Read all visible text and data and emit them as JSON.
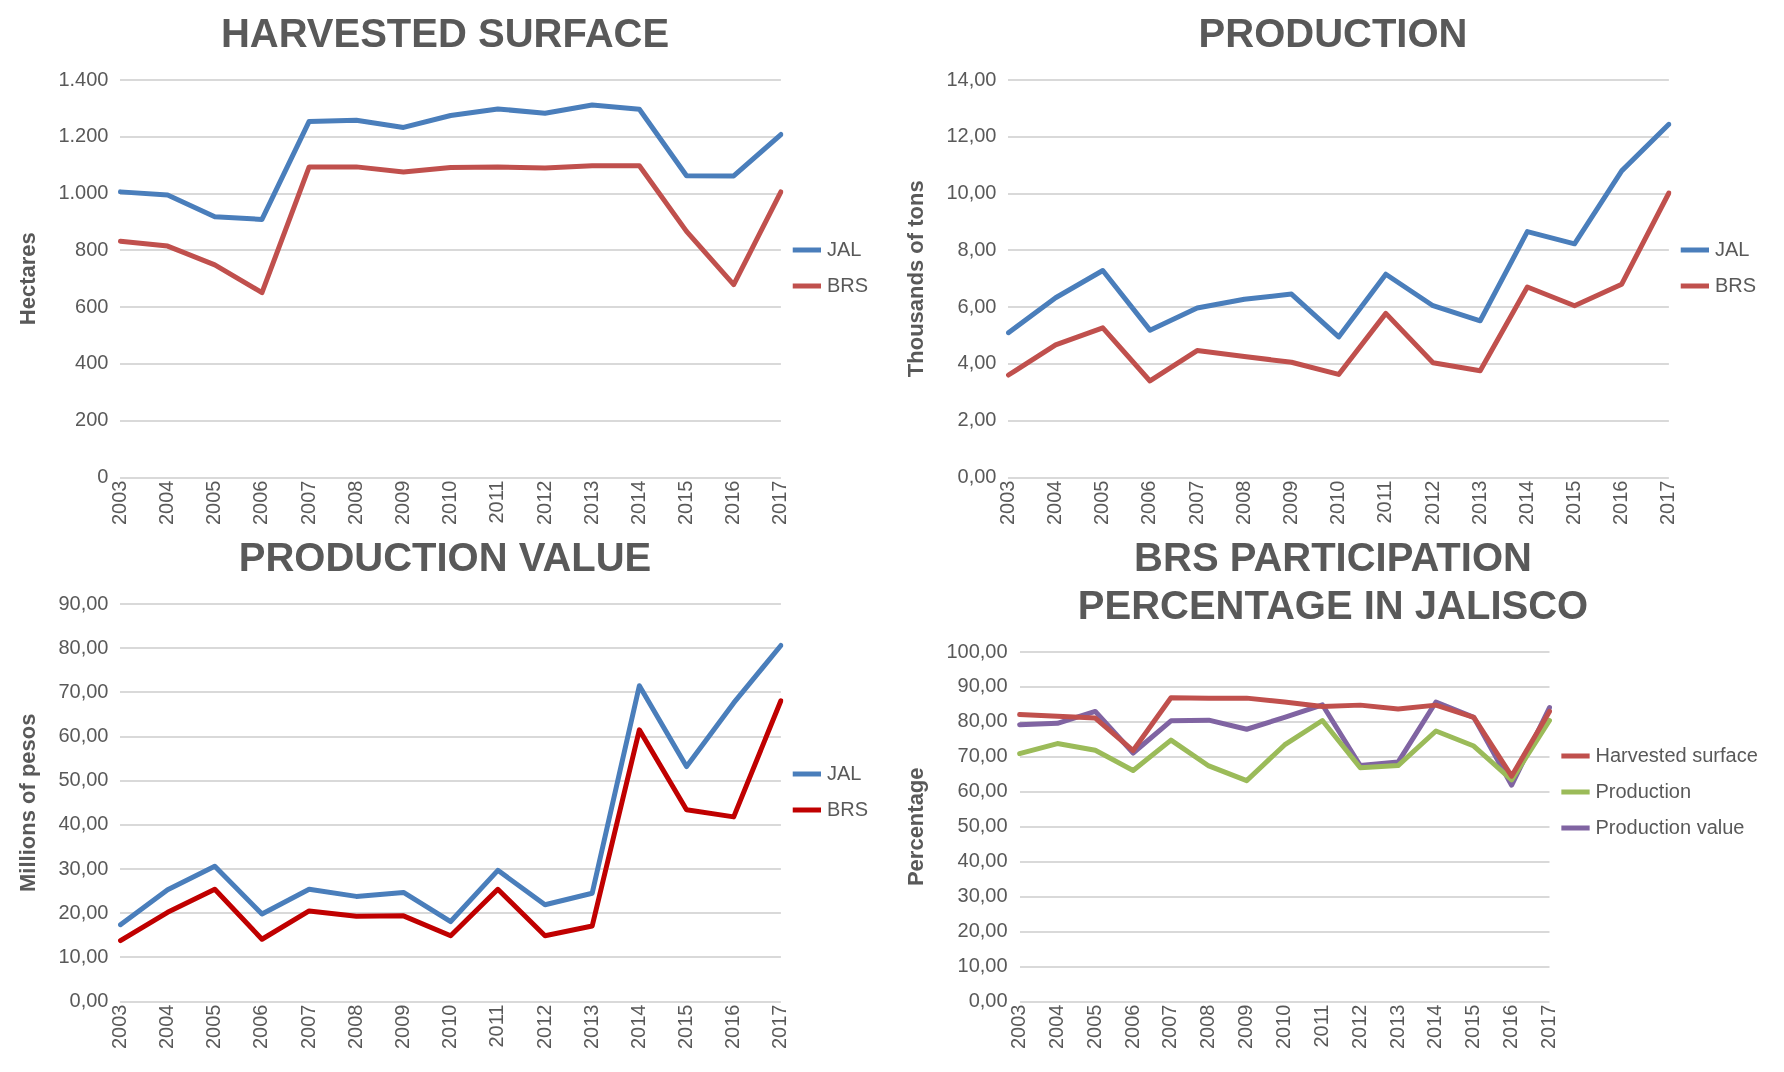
{
  "chart_data": [
    {
      "type": "line",
      "title": "HARVESTED SURFACE",
      "ylabel": "Hectares",
      "categories": [
        "2003",
        "2004",
        "2005",
        "2006",
        "2007",
        "2008",
        "2009",
        "2010",
        "2011",
        "2012",
        "2013",
        "2014",
        "2015",
        "2016",
        "2017"
      ],
      "series": [
        {
          "name": "JAL",
          "color": "#4a7ebb",
          "values": [
            1006,
            995,
            918,
            909,
            1254,
            1258,
            1233,
            1275,
            1298,
            1283,
            1312,
            1297,
            1063,
            1062,
            1208
          ]
        },
        {
          "name": "BRS",
          "color": "#c0504d",
          "values": [
            832,
            815,
            749,
            651,
            1094,
            1094,
            1076,
            1092,
            1094,
            1090,
            1098,
            1098,
            867,
            679,
            1006
          ]
        }
      ],
      "ylim": [
        0,
        1400
      ],
      "yticks": [
        0,
        200,
        400,
        600,
        800,
        {
          "value": 1000,
          "label": "1.000"
        },
        {
          "value": 1200,
          "label": "1.200"
        },
        {
          "value": 1400,
          "label": "1.400"
        }
      ],
      "grid": "y",
      "legend": "right",
      "marker": "none"
    },
    {
      "type": "line",
      "title": "PRODUCTION",
      "ylabel": "Thousands of tons",
      "categories": [
        "2003",
        "2004",
        "2005",
        "2006",
        "2007",
        "2008",
        "2009",
        "2010",
        "2011",
        "2012",
        "2013",
        "2014",
        "2015",
        "2016",
        "2017"
      ],
      "series": [
        {
          "name": "JAL",
          "color": "#4a7ebb",
          "values": [
            5.1,
            6.33,
            7.29,
            5.19,
            5.97,
            6.28,
            6.46,
            4.95,
            7.16,
            6.05,
            5.52,
            8.66,
            8.23,
            10.8,
            12.44
          ]
        },
        {
          "name": "BRS",
          "color": "#c0504d",
          "values": [
            3.61,
            4.67,
            5.27,
            3.4,
            4.47,
            4.26,
            4.06,
            3.63,
            5.78,
            4.04,
            3.76,
            6.71,
            6.05,
            6.81,
            10.02
          ]
        }
      ],
      "ylim": [
        0,
        14
      ],
      "yticks": [
        {
          "value": 0,
          "label": "0,00"
        },
        {
          "value": 2,
          "label": "2,00"
        },
        {
          "value": 4,
          "label": "4,00"
        },
        {
          "value": 6,
          "label": "6,00"
        },
        {
          "value": 8,
          "label": "8,00"
        },
        {
          "value": 10,
          "label": "10,00"
        },
        {
          "value": 12,
          "label": "12,00"
        },
        {
          "value": 14,
          "label": "14,00"
        }
      ],
      "grid": "y",
      "legend": "right",
      "marker": "none"
    },
    {
      "type": "line",
      "title": "PRODUCTION VALUE",
      "ylabel": "Millions of pesos",
      "categories": [
        "2003",
        "2004",
        "2005",
        "2006",
        "2007",
        "2008",
        "2009",
        "2010",
        "2011",
        "2012",
        "2013",
        "2014",
        "2015",
        "2016",
        "2017"
      ],
      "series": [
        {
          "name": "JAL",
          "color": "#4a7ebb",
          "values": [
            17.4,
            25.3,
            30.6,
            19.8,
            25.4,
            23.8,
            24.7,
            18.1,
            29.7,
            21.9,
            24.5,
            71.5,
            53.2,
            67.6,
            80.6
          ]
        },
        {
          "name": "BRS",
          "color": "#c00000",
          "values": [
            13.8,
            20.2,
            25.4,
            14.1,
            20.5,
            19.3,
            19.4,
            14.9,
            25.4,
            14.9,
            17.1,
            61.5,
            43.4,
            41.8,
            68.1
          ]
        }
      ],
      "ylim": [
        0,
        90
      ],
      "yticks": [
        {
          "value": 0,
          "label": "0,00"
        },
        {
          "value": 10,
          "label": "10,00"
        },
        {
          "value": 20,
          "label": "20,00"
        },
        {
          "value": 30,
          "label": "30,00"
        },
        {
          "value": 40,
          "label": "40,00"
        },
        {
          "value": 50,
          "label": "50,00"
        },
        {
          "value": 60,
          "label": "60,00"
        },
        {
          "value": 70,
          "label": "70,00"
        },
        {
          "value": 80,
          "label": "80,00"
        },
        {
          "value": 90,
          "label": "90,00"
        }
      ],
      "grid": "y",
      "legend": "right",
      "marker": "none"
    },
    {
      "type": "line",
      "title": "BRS PARTICIPATION PERCENTAGE IN JALISCO",
      "ylabel": "Percentage",
      "categories": [
        "2003",
        "2004",
        "2005",
        "2006",
        "2007",
        "2008",
        "2009",
        "2010",
        "2011",
        "2012",
        "2013",
        "2014",
        "2015",
        "2016",
        "2017"
      ],
      "series": [
        {
          "name": "Harvested surface",
          "color": "#c0504d",
          "values": [
            82.1,
            81.6,
            81.1,
            71.8,
            86.9,
            86.8,
            86.8,
            85.7,
            84.4,
            84.8,
            83.7,
            84.8,
            81.3,
            64.5,
            83.0
          ]
        },
        {
          "name": "Production",
          "color": "#9bbb59",
          "values": [
            70.9,
            73.8,
            71.9,
            66.1,
            74.8,
            67.4,
            63.2,
            73.4,
            80.4,
            66.9,
            67.5,
            77.4,
            73.1,
            63.4,
            80.4
          ]
        },
        {
          "name": "Production value",
          "color": "#8064a2",
          "values": [
            79.2,
            79.6,
            83.0,
            71.1,
            80.3,
            80.5,
            77.9,
            81.3,
            84.9,
            67.5,
            68.5,
            85.7,
            81.3,
            61.9,
            84.1
          ]
        }
      ],
      "ylim": [
        0,
        100
      ],
      "yticks": [
        {
          "value": 0,
          "label": "0,00"
        },
        {
          "value": 10,
          "label": "10,00"
        },
        {
          "value": 20,
          "label": "20,00"
        },
        {
          "value": 30,
          "label": "30,00"
        },
        {
          "value": 40,
          "label": "40,00"
        },
        {
          "value": 50,
          "label": "50,00"
        },
        {
          "value": 60,
          "label": "60,00"
        },
        {
          "value": 70,
          "label": "70,00"
        },
        {
          "value": 80,
          "label": "80,00"
        },
        {
          "value": 90,
          "label": "90,00"
        },
        {
          "value": 100,
          "label": "100,00"
        }
      ],
      "grid": "y",
      "legend": "right",
      "marker": "none"
    }
  ]
}
